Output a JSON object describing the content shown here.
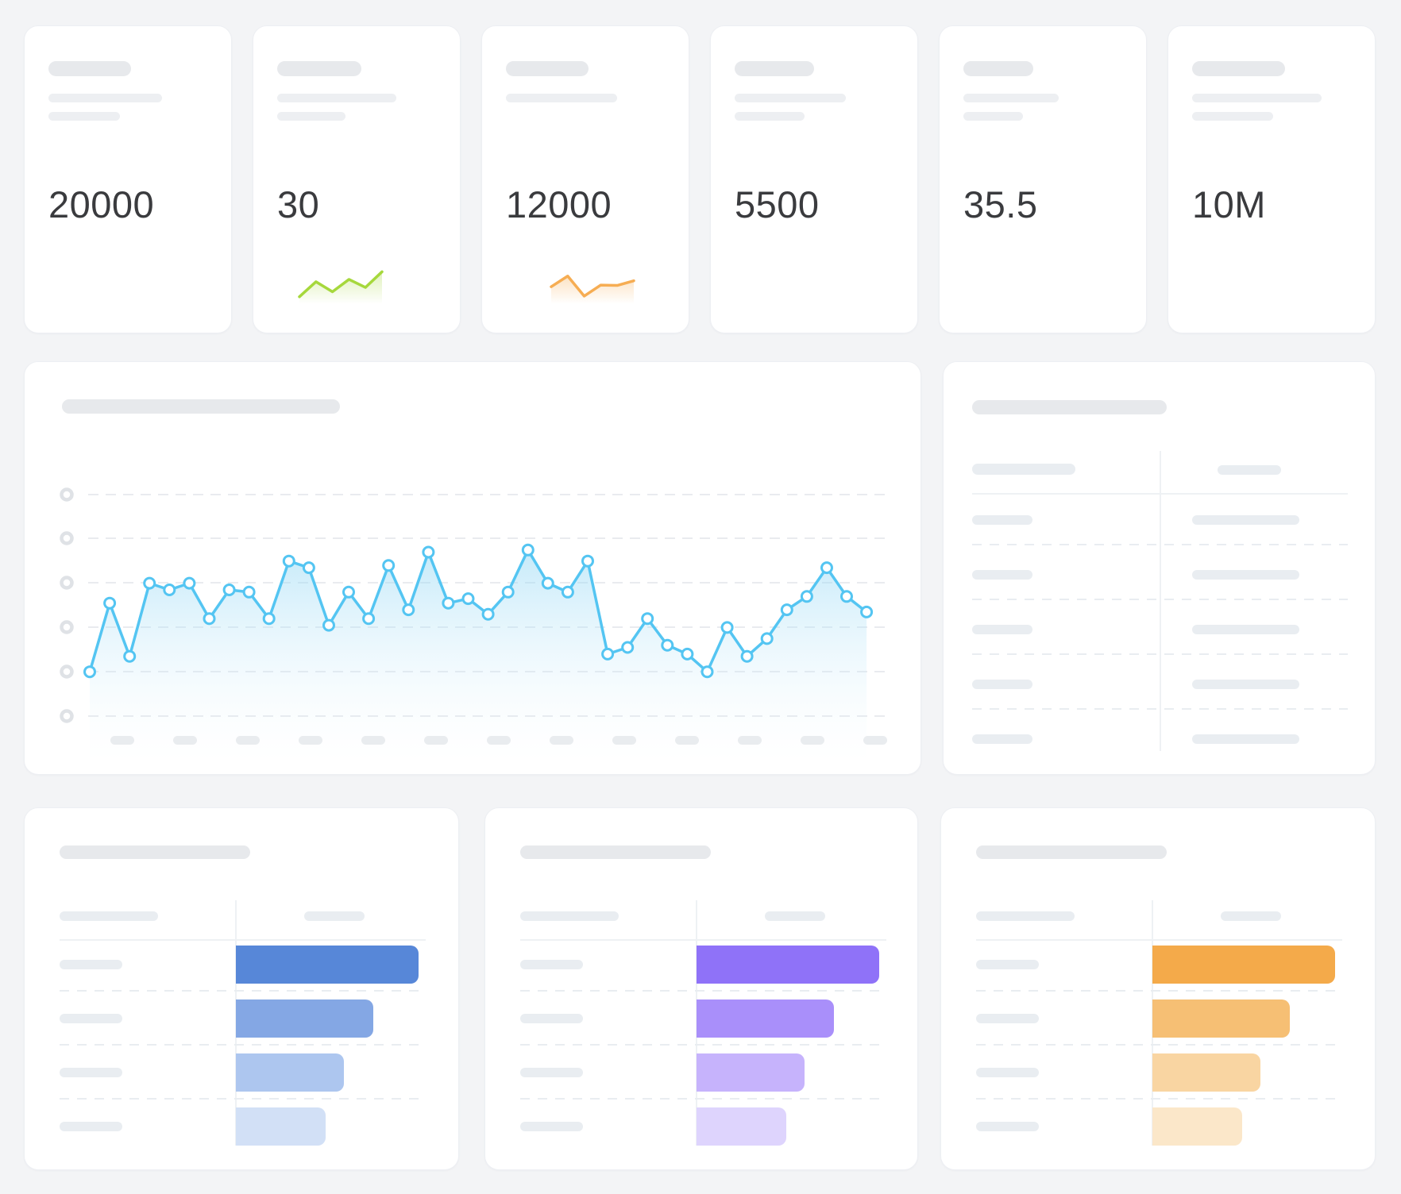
{
  "page": {
    "background": "#f3f4f6",
    "card_background": "#ffffff"
  },
  "stat_cards": [
    {
      "value": "20000",
      "has_line3": true,
      "sparkline": null,
      "sk": {
        "title_w": 104,
        "line2_w": 143,
        "line3_w": 90
      }
    },
    {
      "value": "30",
      "has_line3": true,
      "sparkline": "green",
      "sk": {
        "title_w": 106,
        "line2_w": 150,
        "line3_w": 86
      }
    },
    {
      "value": "12000",
      "has_line3": false,
      "sparkline": "orange",
      "sk": {
        "title_w": 104,
        "line2_w": 140,
        "line3_w": 0
      }
    },
    {
      "value": "5500",
      "has_line3": true,
      "sparkline": null,
      "sk": {
        "title_w": 100,
        "line2_w": 140,
        "line3_w": 88
      }
    },
    {
      "value": "35.5",
      "has_line3": true,
      "sparkline": null,
      "sk": {
        "title_w": 88,
        "line2_w": 120,
        "line3_w": 75
      }
    },
    {
      "value": "10M",
      "has_line3": true,
      "sparkline": null,
      "sk": {
        "title_w": 117,
        "line2_w": 163,
        "line3_w": 102
      }
    }
  ],
  "chart_data": [
    {
      "id": "main-area-chart",
      "type": "area",
      "title": "",
      "series": [
        {
          "name": "skeleton-series",
          "values": [
            20,
            51,
            27,
            60,
            57,
            60,
            44,
            57,
            56,
            44,
            70,
            67,
            41,
            56,
            44,
            68,
            48,
            74,
            51,
            53,
            46,
            56,
            75,
            60,
            56,
            70,
            28,
            31,
            44,
            32,
            28,
            20,
            40,
            27,
            35,
            48,
            54,
            67,
            54,
            47
          ]
        }
      ],
      "ylim": [
        0,
        100
      ],
      "gridline_count": 6,
      "x_tick_count": 13,
      "grid": "dashed horizontal",
      "legend": "none",
      "axis_labels": "skeleton placeholders only (no text on axes)",
      "line_color": "#54c5f2",
      "point_fill": "#ffffff",
      "area_fill_top": "rgba(141,213,244,0.50)",
      "area_fill_bottom": "rgba(235,248,253,0)"
    },
    {
      "id": "sparkline-green",
      "type": "line",
      "values": [
        10,
        55,
        25,
        62,
        38,
        85
      ],
      "color": "#a6d83c"
    },
    {
      "id": "sparkline-orange",
      "type": "line",
      "values": [
        40,
        72,
        12,
        45,
        44,
        58
      ],
      "color": "#f6ad53"
    },
    {
      "id": "hbar-blue",
      "type": "bar",
      "orientation": "horizontal",
      "categories": [
        "",
        "",
        "",
        ""
      ],
      "values": [
        100,
        75,
        59,
        49
      ],
      "bar_colors": [
        "#5787d8",
        "#84a7e4",
        "#adc6ef",
        "#d2e0f6"
      ]
    },
    {
      "id": "hbar-purple",
      "type": "bar",
      "orientation": "horizontal",
      "categories": [
        "",
        "",
        "",
        ""
      ],
      "values": [
        100,
        75,
        59,
        49
      ],
      "bar_colors": [
        "#8f72f8",
        "#a98ffa",
        "#c6b3fc",
        "#ded4fd"
      ]
    },
    {
      "id": "hbar-orange",
      "type": "bar",
      "orientation": "horizontal",
      "categories": [
        "",
        "",
        "",
        ""
      ],
      "values": [
        100,
        75,
        59,
        49
      ],
      "bar_colors": [
        "#f4aa4a",
        "#f6bf74",
        "#f9d5a2",
        "#fbe7c9"
      ]
    }
  ],
  "table_card": {
    "rows": 5,
    "columns": 2,
    "header_labels": "skeleton",
    "cells": "skeleton"
  },
  "colors": {
    "skeleton_dark": "#e7e9ec",
    "skeleton_light": "#edeff2",
    "skeleton_bluish": "#e9edf1",
    "dashed_line": "#e9edf1",
    "solid_divider": "#eef1f4",
    "axis_ring": "#dfe2e6",
    "number_text": "#3a3b3e",
    "accent_blue": "#54c5f2",
    "accent_green": "#a6d83c",
    "accent_orange_spark": "#f6ad53",
    "accent_bar_blue": "#5787d8",
    "accent_bar_purple": "#8f72f8",
    "accent_bar_orange": "#f4aa4a"
  }
}
